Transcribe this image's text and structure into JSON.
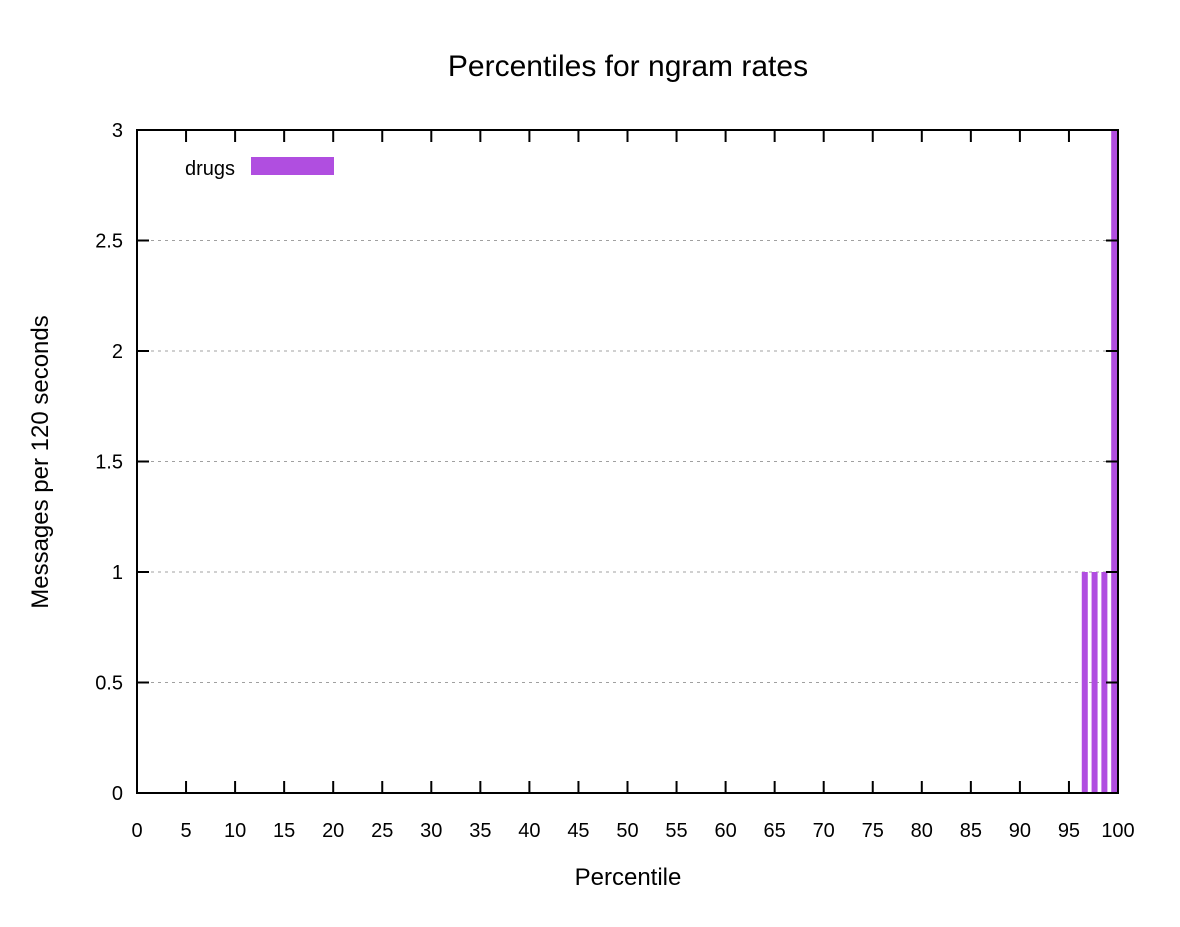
{
  "chart_data": {
    "type": "bar",
    "title": "Percentiles for ngram rates",
    "xlabel": "Percentile",
    "ylabel": "Messages per 120 seconds",
    "xlim": [
      0,
      100
    ],
    "ylim": [
      0,
      3
    ],
    "x_ticks": [
      "0",
      "5",
      "10",
      "15",
      "20",
      "25",
      "30",
      "35",
      "40",
      "45",
      "50",
      "55",
      "60",
      "65",
      "70",
      "75",
      "80",
      "85",
      "90",
      "95",
      "100"
    ],
    "y_ticks": [
      "0",
      "0.5",
      "1",
      "1.5",
      "2",
      "2.5",
      "3"
    ],
    "grid": "horizontal-dashed",
    "legend_position": "top-left",
    "series": [
      {
        "name": "drugs",
        "color": "#b04ee0",
        "points": [
          {
            "x": 97,
            "y": 1
          },
          {
            "x": 98,
            "y": 1
          },
          {
            "x": 99,
            "y": 1
          },
          {
            "x": 100,
            "y": 3
          }
        ]
      }
    ]
  }
}
